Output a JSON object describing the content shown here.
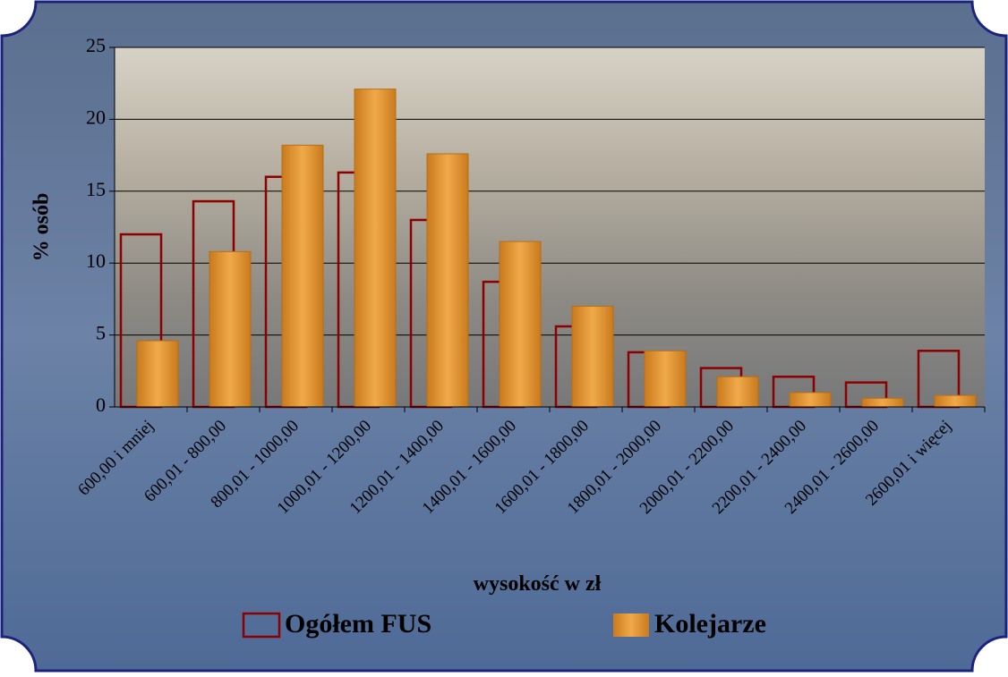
{
  "chart_data": {
    "type": "bar",
    "x_label": "wysokość w zł",
    "y_label": "% osób",
    "categories": [
      "600,00 i mniej",
      "600,01 - 800,00",
      "800,01 - 1000,00",
      "1000,01 - 1200,00",
      "1200,01 - 1400,00",
      "1400,01 - 1600,00",
      "1600,01 - 1800,00",
      "1800,01 - 2000,00",
      "2000,01 - 2200,00",
      "2200,01 - 2400,00",
      "2400,01 - 2600,00",
      "2600,01 i więcej"
    ],
    "series": [
      {
        "name": "Ogółem FUS",
        "color": "#8b0000",
        "style": "outline",
        "values": [
          12.0,
          14.3,
          16.0,
          16.3,
          13.0,
          8.7,
          5.6,
          3.8,
          2.7,
          2.1,
          1.7,
          3.9
        ]
      },
      {
        "name": "Kolejarze",
        "color": "#e0962e",
        "style": "fill",
        "values": [
          4.6,
          10.8,
          18.2,
          22.1,
          17.6,
          11.5,
          7.0,
          3.9,
          2.1,
          1.0,
          0.6,
          0.8
        ]
      }
    ],
    "ylim": [
      0,
      25
    ],
    "yticks": [
      0,
      5,
      10,
      15,
      20,
      25
    ],
    "grid": true,
    "legend": "bottom"
  }
}
